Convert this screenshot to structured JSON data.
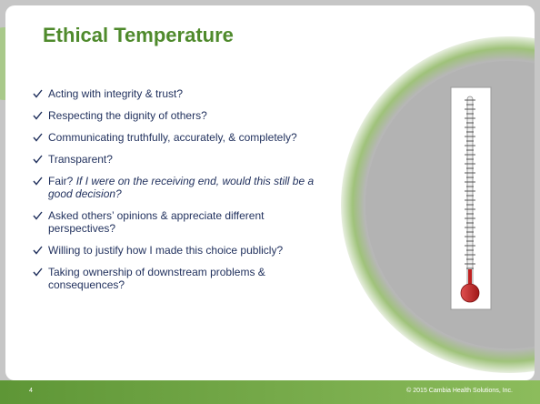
{
  "title": "Ethical Temperature",
  "bullets": [
    {
      "text": "Acting with integrity & trust?"
    },
    {
      "text": "Respecting the dignity of others?"
    },
    {
      "text": "Communicating truthfully, accurately, & completely?"
    },
    {
      "text": "Transparent?"
    },
    {
      "text": "Fair?",
      "note": "If I were on the receiving end, would this still be a good decision?"
    },
    {
      "text": "Asked others’ opinions & appreciate different perspectives?"
    },
    {
      "text": "Willing to justify how I made this choice publicly?"
    },
    {
      "text": "Taking ownership of downstream problems & consequences?"
    }
  ],
  "footer": {
    "page": "4",
    "copyright": "© 2015 Cambia Health Solutions, Inc."
  }
}
